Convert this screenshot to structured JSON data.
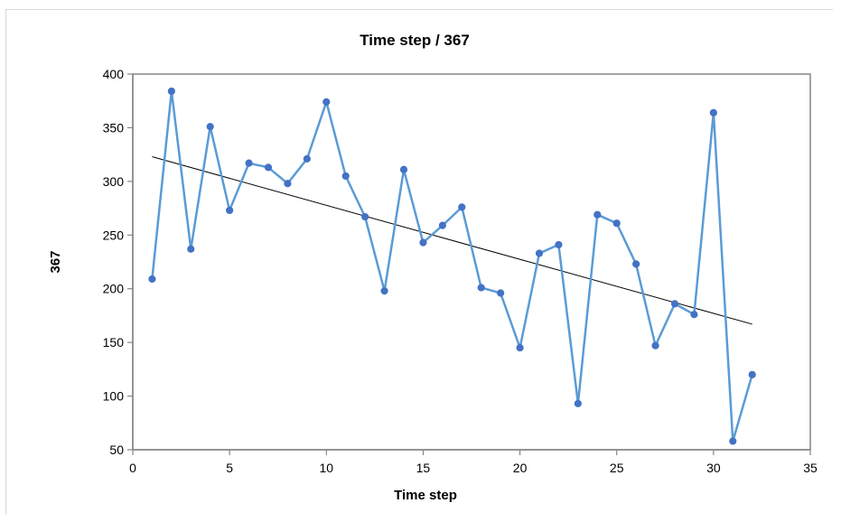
{
  "chart_data": {
    "type": "line",
    "title": "Time step / 367",
    "xlabel": "Time step",
    "ylabel": "367",
    "xlim": [
      0,
      35
    ],
    "ylim": [
      50,
      400
    ],
    "x_ticks": [
      0,
      5,
      10,
      15,
      20,
      25,
      30,
      35
    ],
    "y_ticks": [
      50,
      100,
      150,
      200,
      250,
      300,
      350,
      400
    ],
    "grid": false,
    "legend": "none",
    "series": [
      {
        "color": "#5b9bd5",
        "marker_color": "#4472c4",
        "x": [
          1,
          2,
          3,
          4,
          5,
          6,
          7,
          8,
          9,
          10,
          11,
          12,
          13,
          14,
          15,
          16,
          17,
          18,
          19,
          20,
          21,
          22,
          23,
          24,
          25,
          26,
          27,
          28,
          29,
          30,
          31,
          32
        ],
        "y": [
          209,
          384,
          237,
          351,
          273,
          317,
          313,
          298,
          321,
          374,
          305,
          267,
          198,
          311,
          243,
          259,
          276,
          201,
          196,
          145,
          233,
          241,
          93,
          269,
          261,
          223,
          147,
          186,
          176,
          364,
          58,
          120
        ]
      }
    ],
    "trendline": {
      "color": "#000000",
      "x": [
        1,
        32
      ],
      "y": [
        323,
        167
      ]
    }
  }
}
